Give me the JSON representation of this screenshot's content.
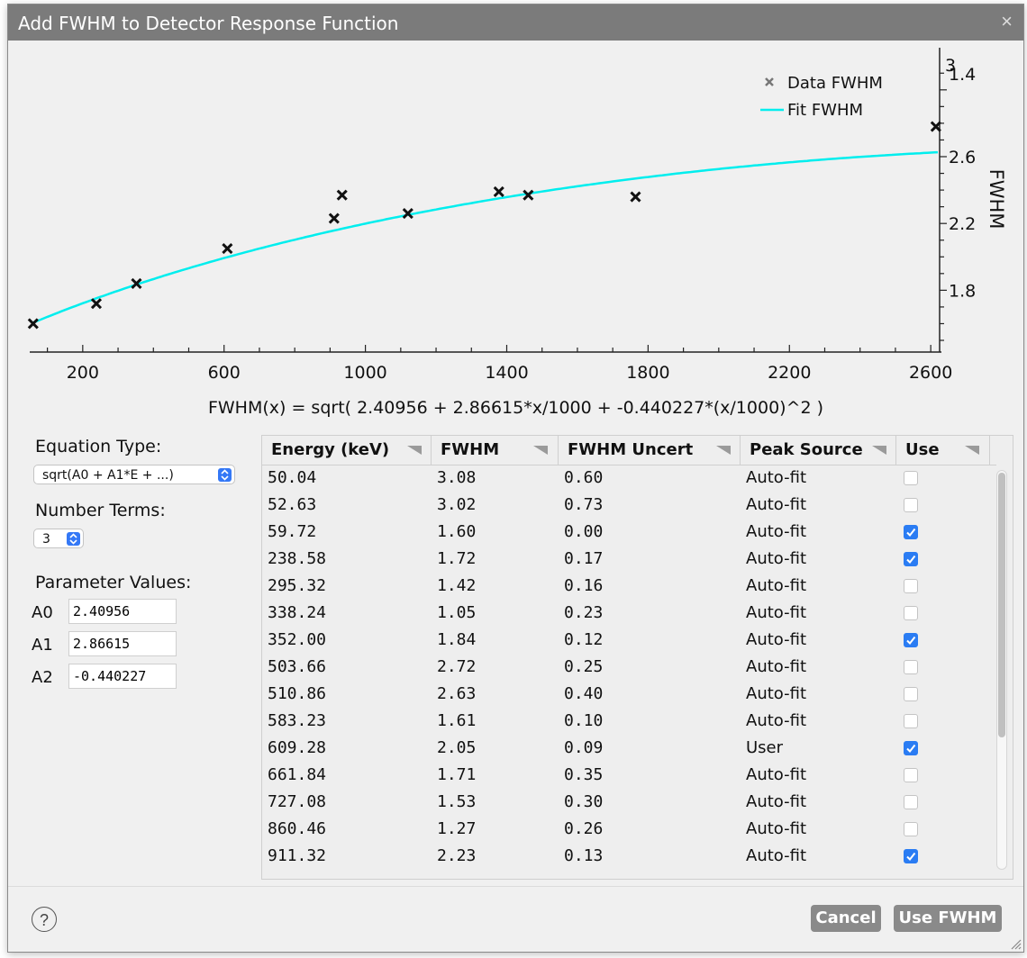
{
  "dialog": {
    "title": "Add FWHM to Detector Response Function",
    "close_glyph": "×"
  },
  "chart_data": {
    "type": "scatter",
    "xlabel": "",
    "ylabel": "FWHM",
    "xlim": [
      50,
      2620
    ],
    "ylim": [
      1.43,
      3.22
    ],
    "x_ticks": [
      200,
      600,
      1000,
      1400,
      1800,
      2200,
      2600
    ],
    "y_ticks": [
      1.8,
      2.2,
      2.6,
      1.4
    ],
    "y_ticks_partial": [
      "3"
    ],
    "legend": [
      "Data FWHM",
      "Fit FWHM"
    ],
    "legend_position": "top-right",
    "series": [
      {
        "name": "Data FWHM",
        "marker": "x",
        "color": "#000000",
        "points": [
          [
            59.72,
            1.6
          ],
          [
            238.58,
            1.72
          ],
          [
            352.0,
            1.84
          ],
          [
            609.28,
            2.05
          ],
          [
            911.32,
            2.23
          ],
          [
            934.0,
            2.37
          ],
          [
            1120.3,
            2.26
          ],
          [
            1377.7,
            2.39
          ],
          [
            1460.8,
            2.37
          ],
          [
            1764.5,
            2.36
          ],
          [
            2614.5,
            2.78
          ]
        ]
      },
      {
        "name": "Fit FWHM",
        "type": "line",
        "color": "#00eeee",
        "formula": "sqrt( 2.40956 + 2.86615*x/1000 + -0.440227*(x/1000)^2 )"
      }
    ]
  },
  "equation": "FWHM(x) = sqrt( 2.40956 + 2.86615*x/1000 + -0.440227*(x/1000)^2 )",
  "controls": {
    "equation_type_label": "Equation Type:",
    "equation_type_value": "sqrt(A0 + A1*E + ...)",
    "number_terms_label": "Number Terms:",
    "number_terms_value": "3",
    "parameter_values_label": "Parameter Values:",
    "params": [
      {
        "name": "A0",
        "value": "2.40956"
      },
      {
        "name": "A1",
        "value": "2.86615"
      },
      {
        "name": "A2",
        "value": "-0.440227"
      }
    ]
  },
  "table": {
    "headers": [
      "Energy (keV)",
      "FWHM",
      "FWHM Uncert",
      "Peak Source",
      "Use"
    ],
    "rows": [
      [
        "50.04",
        "3.08",
        "0.60",
        "Auto-fit",
        false
      ],
      [
        "52.63",
        "3.02",
        "0.73",
        "Auto-fit",
        false
      ],
      [
        "59.72",
        "1.60",
        "0.00",
        "Auto-fit",
        true
      ],
      [
        "238.58",
        "1.72",
        "0.17",
        "Auto-fit",
        true
      ],
      [
        "295.32",
        "1.42",
        "0.16",
        "Auto-fit",
        false
      ],
      [
        "338.24",
        "1.05",
        "0.23",
        "Auto-fit",
        false
      ],
      [
        "352.00",
        "1.84",
        "0.12",
        "Auto-fit",
        true
      ],
      [
        "503.66",
        "2.72",
        "0.25",
        "Auto-fit",
        false
      ],
      [
        "510.86",
        "2.63",
        "0.40",
        "Auto-fit",
        false
      ],
      [
        "583.23",
        "1.61",
        "0.10",
        "Auto-fit",
        false
      ],
      [
        "609.28",
        "2.05",
        "0.09",
        "User",
        true
      ],
      [
        "661.84",
        "1.71",
        "0.35",
        "Auto-fit",
        false
      ],
      [
        "727.08",
        "1.53",
        "0.30",
        "Auto-fit",
        false
      ],
      [
        "860.46",
        "1.27",
        "0.26",
        "Auto-fit",
        false
      ],
      [
        "911.32",
        "2.23",
        "0.13",
        "Auto-fit",
        true
      ]
    ]
  },
  "footer": {
    "help_glyph": "?",
    "cancel_label": "Cancel",
    "use_label": "Use FWHM"
  }
}
